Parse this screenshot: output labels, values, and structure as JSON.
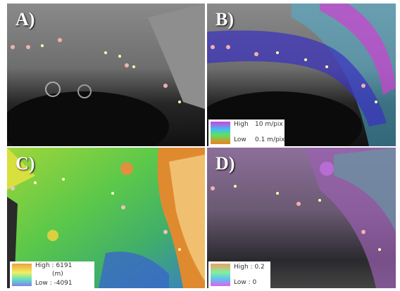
{
  "panels": [
    {
      "label": "A)"
    },
    {
      "label": "B)",
      "legend": {
        "high": "High",
        "high_value": "10 m/pix",
        "low": "Low",
        "low_value": "0.1 m/pix"
      }
    },
    {
      "label": "C)",
      "legend": {
        "high": "High : 6191",
        "unit": "(m)",
        "low": "Low : -4091"
      }
    },
    {
      "label": "D)",
      "legend": {
        "high": "High : 0.2",
        "low": "Low : 0"
      }
    }
  ]
}
